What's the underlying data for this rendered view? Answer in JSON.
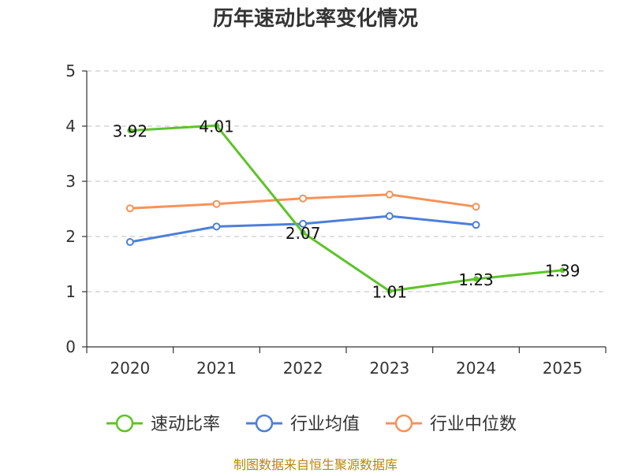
{
  "chart_data": {
    "type": "line",
    "title": "历年速动比率变化情况",
    "categories": [
      "2020",
      "2021",
      "2022",
      "2023",
      "2024",
      "2025"
    ],
    "ylim": [
      0,
      5
    ],
    "yticks": [
      0,
      1,
      2,
      3,
      4,
      5
    ],
    "grid": true,
    "legend_position": "bottom",
    "series": [
      {
        "name": "速动比率",
        "color": "#5dc329",
        "values": [
          3.92,
          4.01,
          2.07,
          1.01,
          1.23,
          1.39
        ],
        "labels": [
          "3.92",
          "4.01",
          "2.07",
          "1.01",
          "1.23",
          "1.39"
        ]
      },
      {
        "name": "行业均值",
        "color": "#4e7fd9",
        "values": [
          1.9,
          2.18,
          2.23,
          2.37,
          2.21,
          null
        ]
      },
      {
        "name": "行业中位数",
        "color": "#f4935a",
        "values": [
          2.51,
          2.59,
          2.69,
          2.76,
          2.54,
          null
        ]
      }
    ],
    "source": "制图数据来自恒生聚源数据库"
  }
}
